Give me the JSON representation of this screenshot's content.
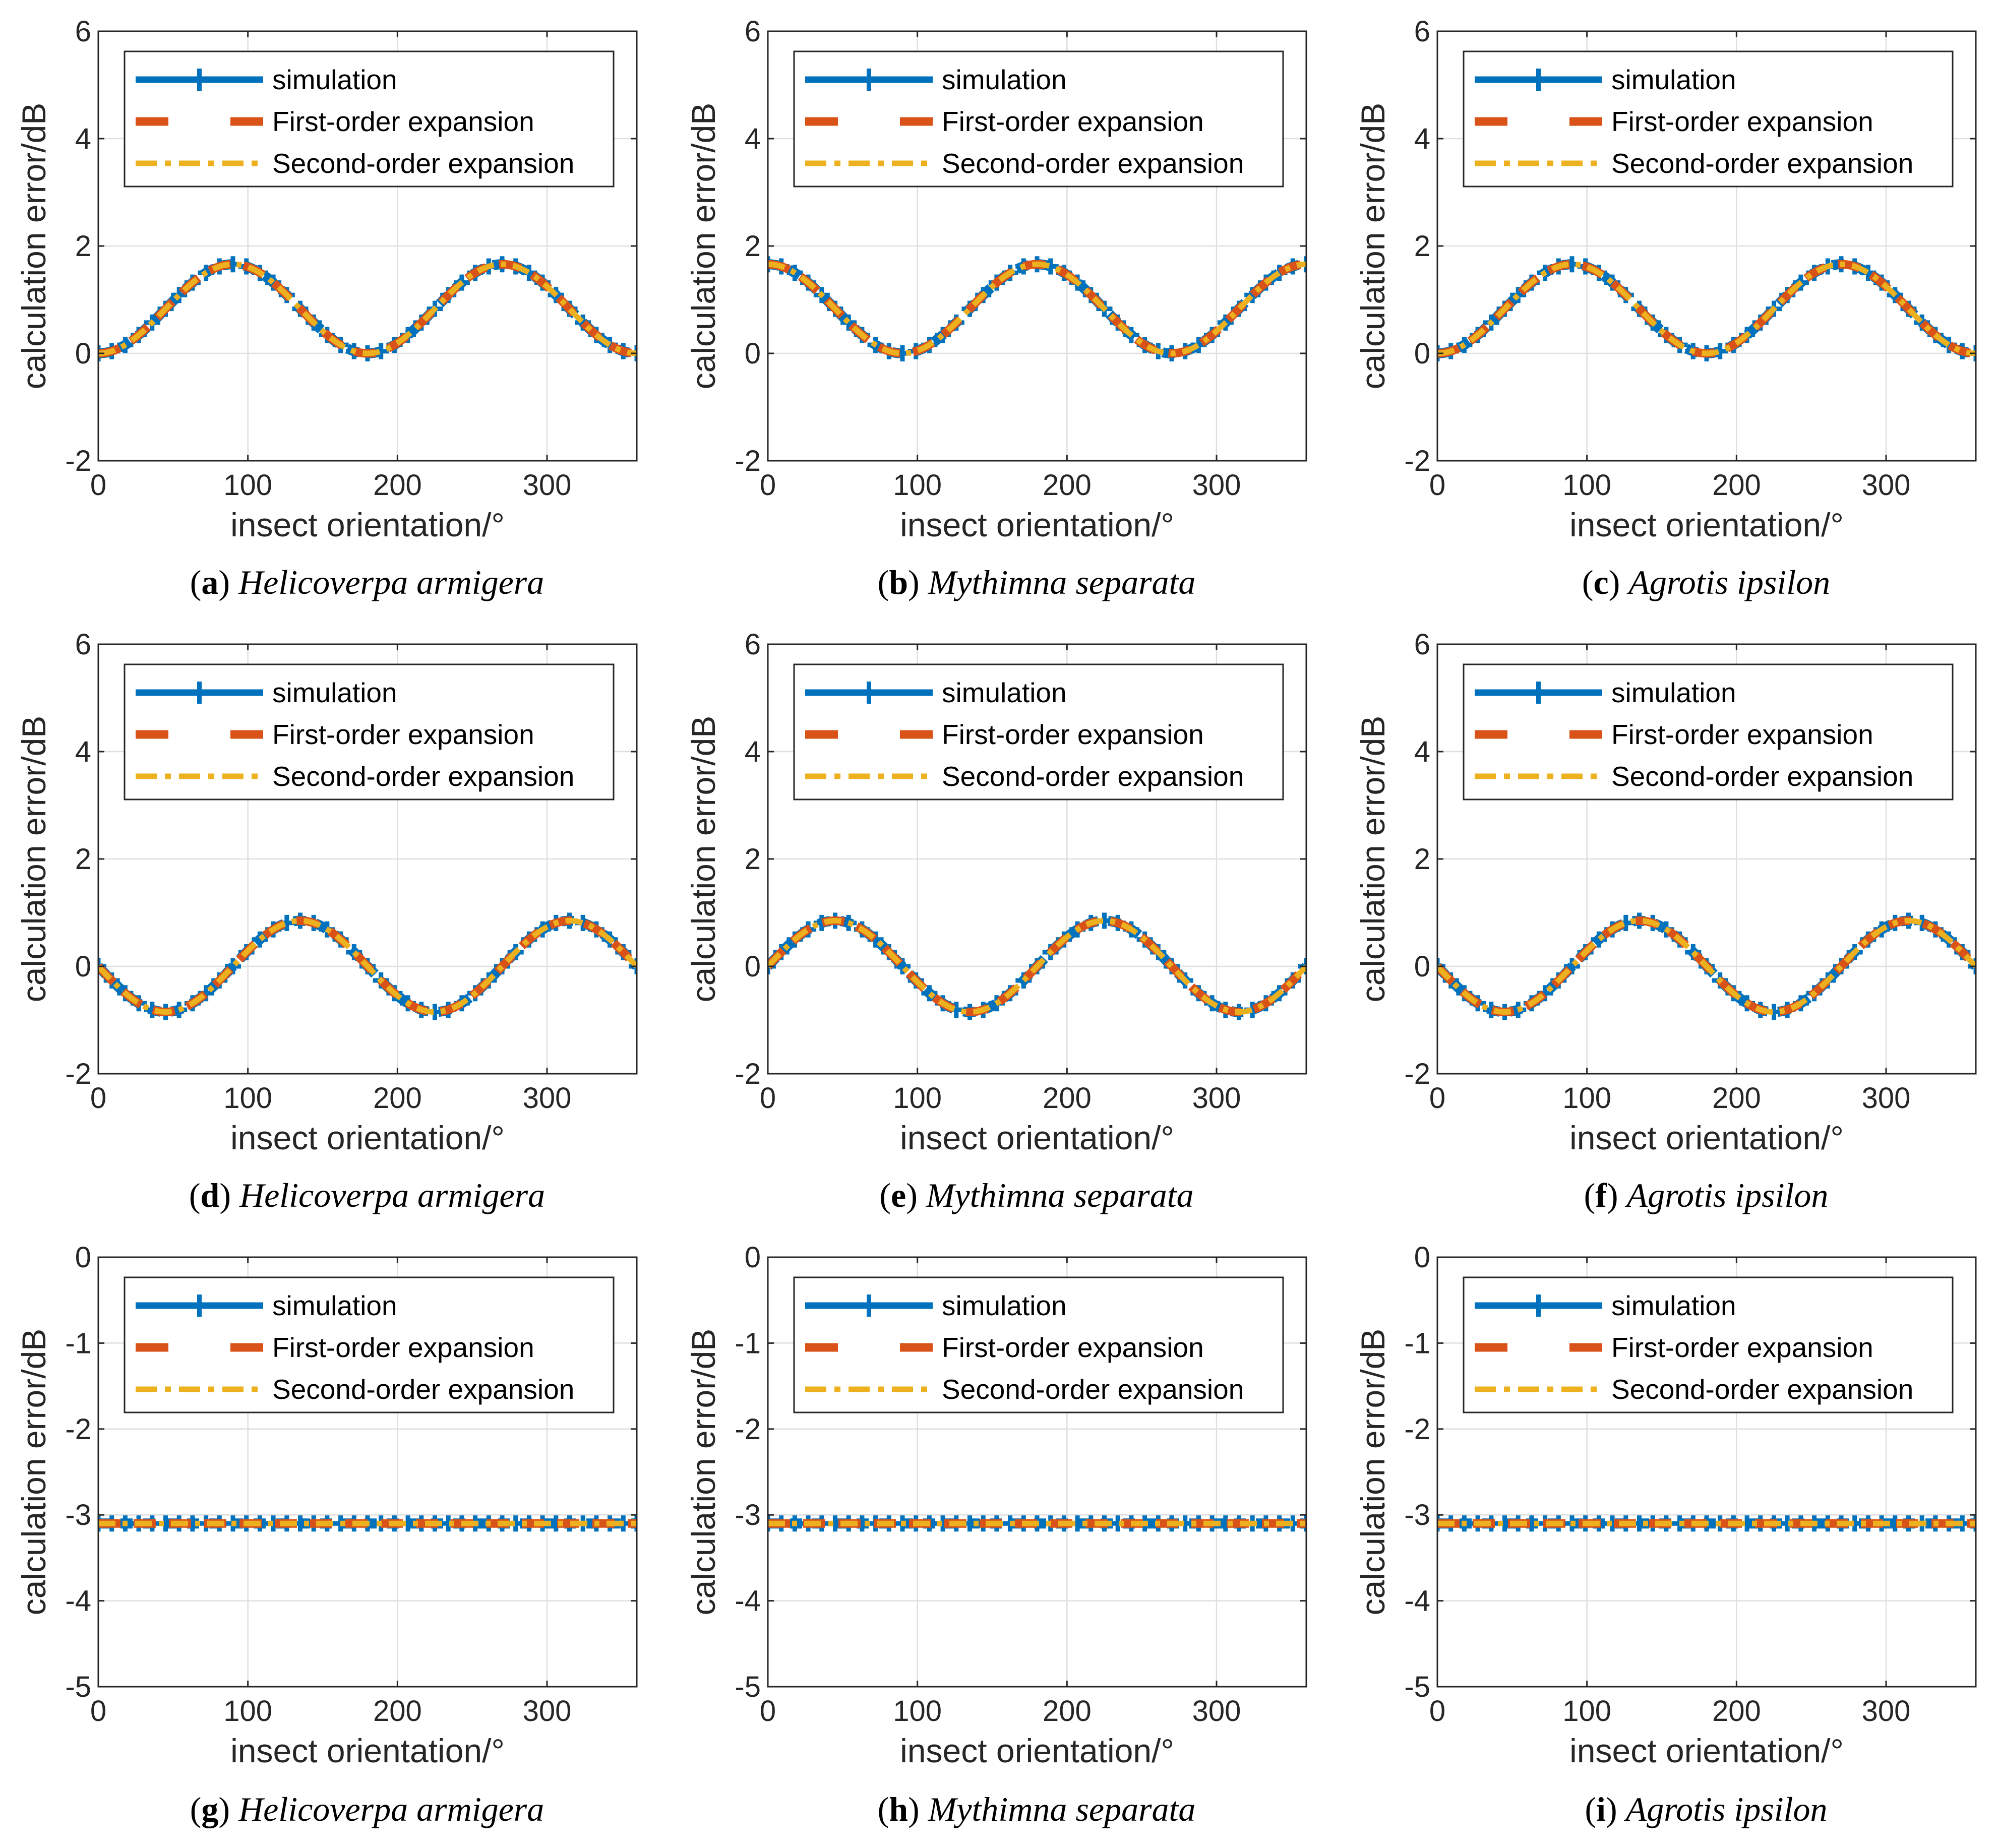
{
  "legend": {
    "labels": [
      "simulation",
      "First-order expansion",
      "Second-order expansion"
    ],
    "colors": [
      "#0072BD",
      "#D95319",
      "#EDB120"
    ]
  },
  "chart_data": [
    {
      "type": "line",
      "panel": "a",
      "species": "Helicoverpa armigera",
      "xlabel": "insect orientation/°",
      "ylabel": "calculation error/dB",
      "xlim": [
        0,
        360
      ],
      "ylim": [
        -2,
        6
      ],
      "xticks": [
        "0",
        "100",
        "200",
        "300"
      ],
      "yticks": [
        "-2",
        "0",
        "2",
        "4",
        "6"
      ],
      "curve": {
        "form": "A - B*cos(2x)",
        "A": 0.83,
        "B": 0.83
      },
      "series": [
        {
          "name": "simulation"
        },
        {
          "name": "First-order expansion"
        },
        {
          "name": "Second-order expansion"
        }
      ]
    },
    {
      "type": "line",
      "panel": "b",
      "species": "Mythimna separata",
      "xlabel": "insect orientation/°",
      "ylabel": "calculation error/dB",
      "xlim": [
        0,
        360
      ],
      "ylim": [
        -2,
        6
      ],
      "xticks": [
        "0",
        "100",
        "200",
        "300"
      ],
      "yticks": [
        "-2",
        "0",
        "2",
        "4",
        "6"
      ],
      "curve": {
        "form": "A + B*cos(2x)",
        "A": 0.83,
        "B": 0.83
      },
      "series": [
        {
          "name": "simulation"
        },
        {
          "name": "First-order expansion"
        },
        {
          "name": "Second-order expansion"
        }
      ]
    },
    {
      "type": "line",
      "panel": "c",
      "species": "Agrotis ipsilon",
      "xlabel": "insect orientation/°",
      "ylabel": "calculation error/dB",
      "xlim": [
        0,
        360
      ],
      "ylim": [
        -2,
        6
      ],
      "xticks": [
        "0",
        "100",
        "200",
        "300"
      ],
      "yticks": [
        "-2",
        "0",
        "2",
        "4",
        "6"
      ],
      "curve": {
        "form": "A - B*cos(2x)",
        "A": 0.83,
        "B": 0.83
      },
      "series": [
        {
          "name": "simulation"
        },
        {
          "name": "First-order expansion"
        },
        {
          "name": "Second-order expansion"
        }
      ]
    },
    {
      "type": "line",
      "panel": "d",
      "species": "Helicoverpa armigera",
      "xlabel": "insect orientation/°",
      "ylabel": "calculation error/dB",
      "xlim": [
        0,
        360
      ],
      "ylim": [
        -2,
        6
      ],
      "xticks": [
        "0",
        "100",
        "200",
        "300"
      ],
      "yticks": [
        "-2",
        "0",
        "2",
        "4",
        "6"
      ],
      "curve": {
        "form": "A - B*sin(2x)",
        "A": 0,
        "B": 0.85
      },
      "series": [
        {
          "name": "simulation"
        },
        {
          "name": "First-order expansion"
        },
        {
          "name": "Second-order expansion"
        }
      ]
    },
    {
      "type": "line",
      "panel": "e",
      "species": "Mythimna separata",
      "xlabel": "insect orientation/°",
      "ylabel": "calculation error/dB",
      "xlim": [
        0,
        360
      ],
      "ylim": [
        -2,
        6
      ],
      "xticks": [
        "0",
        "100",
        "200",
        "300"
      ],
      "yticks": [
        "-2",
        "0",
        "2",
        "4",
        "6"
      ],
      "curve": {
        "form": "A + B*sin(2x)",
        "A": 0,
        "B": 0.85
      },
      "series": [
        {
          "name": "simulation"
        },
        {
          "name": "First-order expansion"
        },
        {
          "name": "Second-order expansion"
        }
      ]
    },
    {
      "type": "line",
      "panel": "f",
      "species": "Agrotis ipsilon",
      "xlabel": "insect orientation/°",
      "ylabel": "calculation error/dB",
      "xlim": [
        0,
        360
      ],
      "ylim": [
        -2,
        6
      ],
      "xticks": [
        "0",
        "100",
        "200",
        "300"
      ],
      "yticks": [
        "-2",
        "0",
        "2",
        "4",
        "6"
      ],
      "curve": {
        "form": "A - B*sin(2x)",
        "A": 0,
        "B": 0.85
      },
      "series": [
        {
          "name": "simulation"
        },
        {
          "name": "First-order expansion"
        },
        {
          "name": "Second-order expansion"
        }
      ]
    },
    {
      "type": "line",
      "panel": "g",
      "species": "Helicoverpa armigera",
      "xlabel": "insect orientation/°",
      "ylabel": "calculation error/dB",
      "xlim": [
        0,
        360
      ],
      "ylim": [
        -5,
        0
      ],
      "xticks": [
        "0",
        "100",
        "200",
        "300"
      ],
      "yticks": [
        "-5",
        "-4",
        "-3",
        "-2",
        "-1",
        "0"
      ],
      "curve": {
        "form": "constant",
        "A": -3.1,
        "B": 0
      },
      "series": [
        {
          "name": "simulation"
        },
        {
          "name": "First-order expansion"
        },
        {
          "name": "Second-order expansion"
        }
      ]
    },
    {
      "type": "line",
      "panel": "h",
      "species": "Mythimna separata",
      "xlabel": "insect orientation/°",
      "ylabel": "calculation error/dB",
      "xlim": [
        0,
        360
      ],
      "ylim": [
        -5,
        0
      ],
      "xticks": [
        "0",
        "100",
        "200",
        "300"
      ],
      "yticks": [
        "-5",
        "-4",
        "-3",
        "-2",
        "-1",
        "0"
      ],
      "curve": {
        "form": "constant",
        "A": -3.1,
        "B": 0
      },
      "series": [
        {
          "name": "simulation"
        },
        {
          "name": "First-order expansion"
        },
        {
          "name": "Second-order expansion"
        }
      ]
    },
    {
      "type": "line",
      "panel": "i",
      "species": "Agrotis ipsilon",
      "xlabel": "insect orientation/°",
      "ylabel": "calculation error/dB",
      "xlim": [
        0,
        360
      ],
      "ylim": [
        -5,
        0
      ],
      "xticks": [
        "0",
        "100",
        "200",
        "300"
      ],
      "yticks": [
        "-5",
        "-4",
        "-3",
        "-2",
        "-1",
        "0"
      ],
      "curve": {
        "form": "constant",
        "A": -3.1,
        "B": 0
      },
      "series": [
        {
          "name": "simulation"
        },
        {
          "name": "First-order expansion"
        },
        {
          "name": "Second-order expansion"
        }
      ]
    }
  ]
}
